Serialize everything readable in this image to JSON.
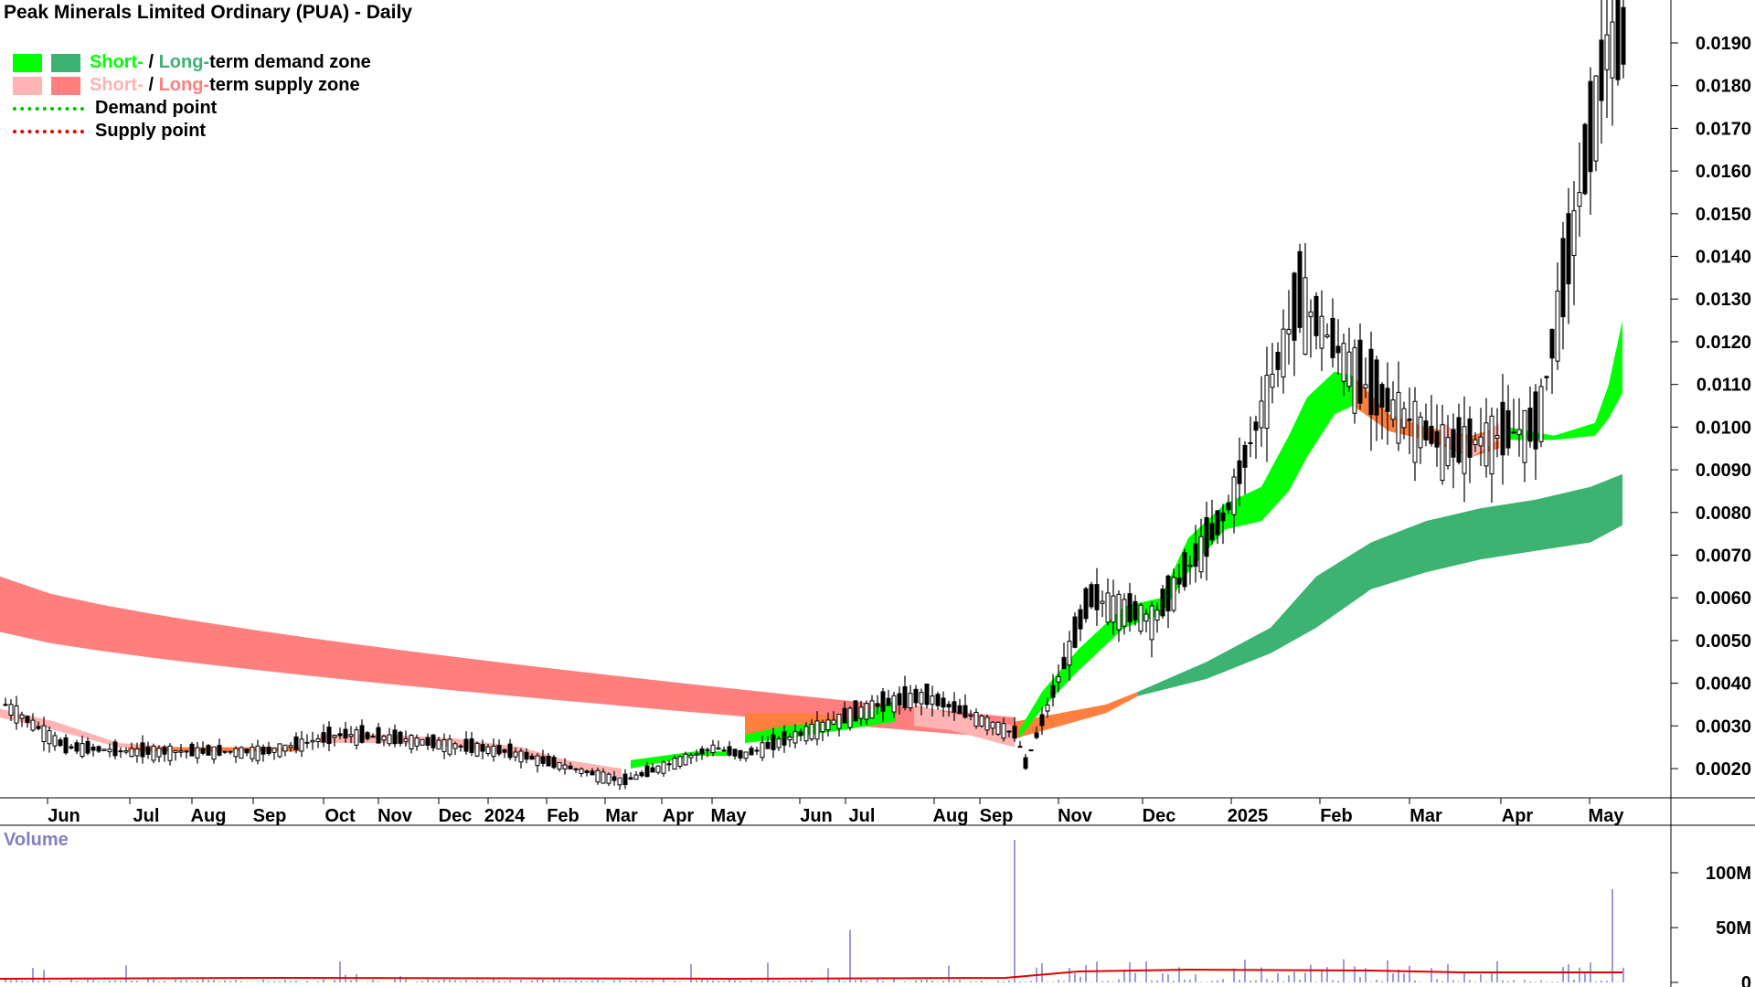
{
  "title": "Peak Minerals Limited Ordinary (PUA) - Daily",
  "legend": {
    "zone_demand": {
      "short": "Short-",
      "sep": " / ",
      "long": "Long-",
      "rest": "term demand zone"
    },
    "zone_supply": {
      "short": "Short-",
      "sep": " / ",
      "long": "Long-",
      "rest": "term supply zone"
    },
    "demand_point": "Demand point",
    "supply_point": "Supply point"
  },
  "colors": {
    "short_demand": "#00ff00",
    "long_demand": "#3cb371",
    "short_supply": "#ffb3b3",
    "long_supply": "#ff7f7f",
    "transition": "#ff7f3f",
    "demand_point": "#00c000",
    "supply_point": "#e00000",
    "volume_bar": "#7a7ad0",
    "volume_avg": "#e00000",
    "volume_label": "#8080c0"
  },
  "chart_data": [
    {
      "type": "candlestick",
      "title": "Peak Minerals Limited Ordinary (PUA) - Daily",
      "ylim": [
        0.0013,
        0.0199
      ],
      "y_ticks": [
        "0.0020",
        "0.0030",
        "0.0040",
        "0.0050",
        "0.0060",
        "0.0070",
        "0.0080",
        "0.0090",
        "0.0100",
        "0.0110",
        "0.0120",
        "0.0130",
        "0.0140",
        "0.0150",
        "0.0160",
        "0.0170",
        "0.0180",
        "0.0190"
      ],
      "x_ticks": [
        "Jun",
        "Jul",
        "Aug",
        "Sep",
        "Oct",
        "Nov",
        "Dec",
        "2024",
        "Feb",
        "Mar",
        "Apr",
        "May",
        "Jun",
        "Jul",
        "Aug",
        "Sep",
        "Nov",
        "Dec",
        "2025",
        "Feb",
        "Mar",
        "Apr",
        "May"
      ],
      "price_path": [
        {
          "date": "2023-05",
          "price": 0.0035
        },
        {
          "date": "2023-06",
          "price": 0.0025
        },
        {
          "date": "2023-07",
          "price": 0.0024
        },
        {
          "date": "2023-09",
          "price": 0.0024
        },
        {
          "date": "2023-10",
          "price": 0.0028
        },
        {
          "date": "2023-11",
          "price": 0.0027
        },
        {
          "date": "2024-01",
          "price": 0.0024
        },
        {
          "date": "2024-03",
          "price": 0.0017
        },
        {
          "date": "2024-04",
          "price": 0.0025
        },
        {
          "date": "2024-05",
          "price": 0.0023
        },
        {
          "date": "2024-05b",
          "price": 0.0035
        },
        {
          "date": "2024-07",
          "price": 0.0037
        },
        {
          "date": "2024-08",
          "price": 0.0028
        },
        {
          "date": "2024-09",
          "price": 0.0021
        },
        {
          "date": "2024-09b",
          "price": 0.006
        },
        {
          "date": "2024-11",
          "price": 0.0055
        },
        {
          "date": "2024-12",
          "price": 0.008
        },
        {
          "date": "2025-01",
          "price": 0.013
        },
        {
          "date": "2025-02",
          "price": 0.011
        },
        {
          "date": "2025-03",
          "price": 0.0095
        },
        {
          "date": "2025-04",
          "price": 0.01
        },
        {
          "date": "2025-05",
          "price": 0.019
        }
      ],
      "long_term_zone": {
        "color_phases": [
          "supply",
          "demand"
        ],
        "start_upper": 0.0065,
        "start_lower": 0.0052,
        "end_upper": 0.0089,
        "end_lower": 0.0077
      },
      "short_term_zone": {
        "color_phases": [
          "supply",
          "demand"
        ],
        "end_upper": 0.0125,
        "end_lower": 0.01
      }
    },
    {
      "type": "bar",
      "title": "Volume",
      "y_ticks": [
        "100M",
        "50M",
        "0"
      ],
      "ylim": [
        0,
        140000000
      ],
      "notable_spikes": [
        {
          "date": "2024-09",
          "volume": 130000000
        },
        {
          "date": "2025-05",
          "volume": 85000000
        },
        {
          "date": "2024-07",
          "volume": 48000000
        }
      ]
    }
  ]
}
